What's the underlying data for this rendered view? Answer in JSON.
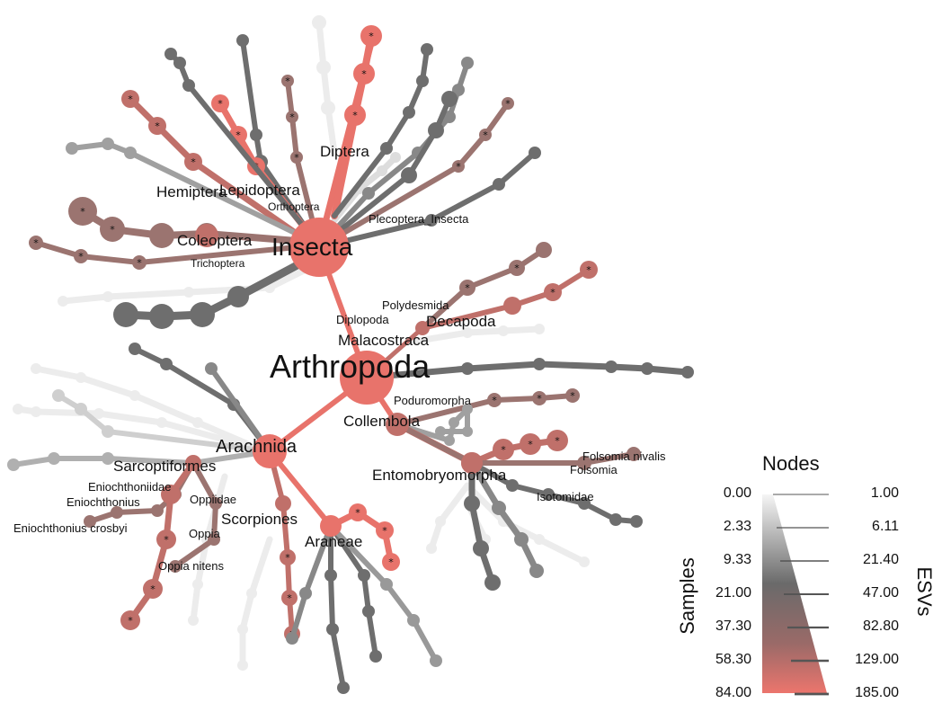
{
  "labels": {
    "arthropoda": "Arthropoda",
    "insecta": "Insecta",
    "arachnida": "Arachnida",
    "malacostraca": "Malacostraca",
    "diplopoda": "Diplopoda",
    "polydesmida": "Polydesmida",
    "decapoda": "Decapoda",
    "collembola": "Collembola",
    "poduromorpha": "Poduromorpha",
    "entomobryomorpha": "Entomobryomorpha",
    "isotomidae": "Isotomidae",
    "folsomia": "Folsomia",
    "folsomia_nivalis": "Folsomia nivalis",
    "diptera": "Diptera",
    "hemiptera": "Hemiptera",
    "lepidoptera": "Lepidoptera",
    "orthoptera": "Orthoptera",
    "plecoptera_insecta": "Plecoptera_Insecta",
    "coleoptera": "Coleoptera",
    "trichoptera": "Trichoptera",
    "sarcoptiformes": "Sarcoptiformes",
    "enicchthoniidae": "Eniochthoniidae",
    "eniochthonius": "Eniochthonius",
    "eniochthonius_crosbyi": "Eniochthonius crosbyi",
    "oppiidae": "Oppiidae",
    "oppia": "Oppia",
    "oppia_nitens": "Oppia nitens",
    "scorpiones": "Scorpiones",
    "araneae": "Araneae"
  },
  "star_symbol": "*",
  "legend": {
    "title": "Nodes",
    "left_axis": "Samples",
    "right_axis": "ESVs",
    "samples": [
      "0.00",
      "2.33",
      "9.33",
      "21.00",
      "37.30",
      "58.30",
      "84.00"
    ],
    "esvs": [
      "1.00",
      "6.11",
      "21.40",
      "47.00",
      "82.80",
      "129.00",
      "185.00"
    ],
    "color_low": "#eeeeee",
    "color_mid": "#666666",
    "color_high": "#e8736b"
  },
  "colors": {
    "salmon": "#e8736b",
    "rose": "#c0706a",
    "mauve": "#9b7470",
    "dark": "#6e6e6e",
    "mid": "#a0a0a0",
    "light": "#cfcfcf",
    "faint": "#ececec"
  }
}
